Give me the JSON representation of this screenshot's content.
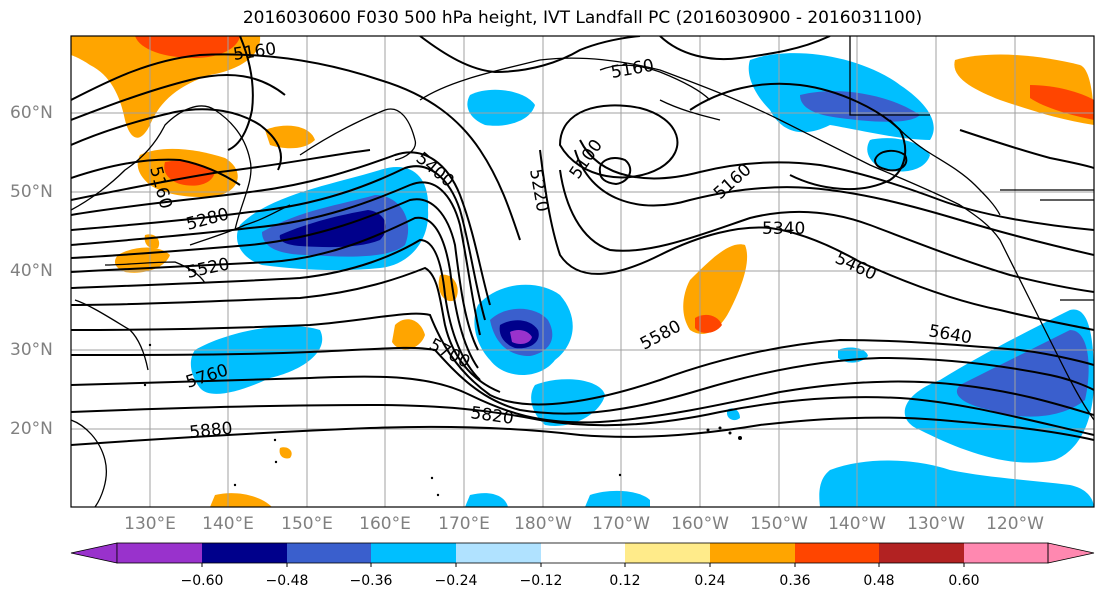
{
  "title": "2016030600 F030 500 hPa height, IVT Landfall PC (2016030900 - 2016031100)",
  "lat_labels": [
    "60°N",
    "50°N",
    "40°N",
    "30°N",
    "20°N"
  ],
  "lon_labels": [
    "130°E",
    "140°E",
    "150°E",
    "160°E",
    "170°E",
    "180°W",
    "170°W",
    "160°W",
    "150°W",
    "140°W",
    "130°W",
    "120°W"
  ],
  "contour_labels": [
    "5160",
    "5160",
    "5160",
    "5100",
    "5160",
    "5400",
    "5220",
    "5280",
    "5520",
    "5340",
    "5460",
    "5580",
    "5640",
    "5700",
    "5760",
    "5820",
    "5880"
  ],
  "colorbar": {
    "ticks": [
      "−0.60",
      "−0.48",
      "−0.36",
      "−0.24",
      "−0.12",
      "0.12",
      "0.24",
      "0.36",
      "0.48",
      "0.60"
    ],
    "colors": [
      "#9932cc",
      "#00008b",
      "#3a5fcd",
      "#00bfff",
      "#b0e2ff",
      "#ffffff",
      "#ffeb8a",
      "#ffa500",
      "#ff4500",
      "#b22222",
      "#ff88b0"
    ]
  }
}
